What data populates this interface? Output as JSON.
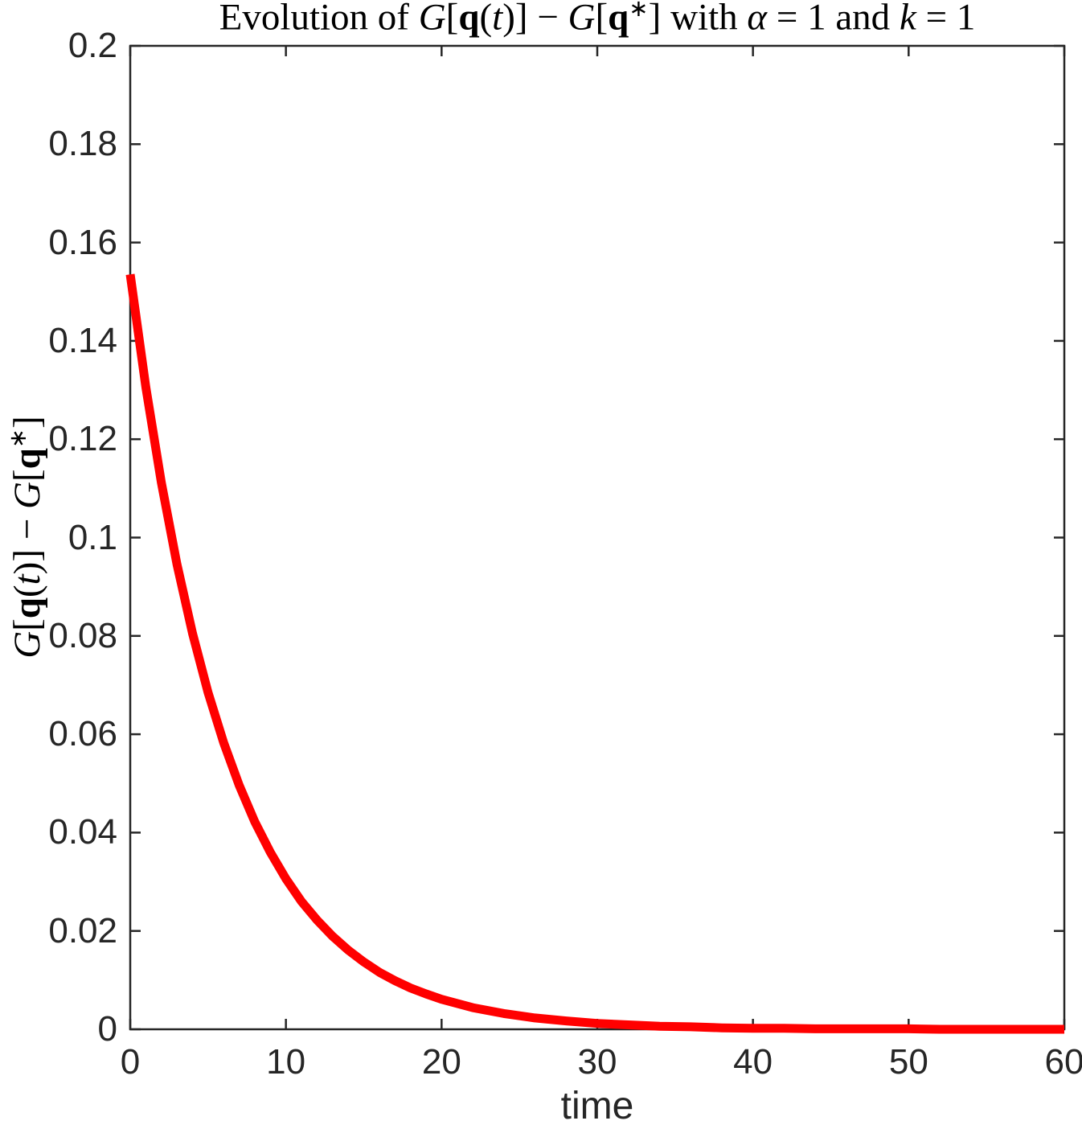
{
  "figure": {
    "background": "#FFFFFF",
    "title_plain": "Evolution of G[q(t)] − G[q∗] with α = 1 and k = 1",
    "title_parts": [
      {
        "t": "Evolution of ",
        "s": "rm"
      },
      {
        "t": "G",
        "s": "it"
      },
      {
        "t": "[",
        "s": "rm"
      },
      {
        "t": "q",
        "s": "bf"
      },
      {
        "t": "(",
        "s": "rm"
      },
      {
        "t": "t",
        "s": "it"
      },
      {
        "t": ")]",
        "s": "rm"
      },
      {
        "t": " − ",
        "s": "rm"
      },
      {
        "t": "G",
        "s": "it"
      },
      {
        "t": "[",
        "s": "rm"
      },
      {
        "t": "q",
        "s": "bf"
      },
      {
        "t": "∗",
        "s": "sup"
      },
      {
        "t": "] with ",
        "s": "rm"
      },
      {
        "t": "α",
        "s": "it"
      },
      {
        "t": " = 1 and ",
        "s": "rm"
      },
      {
        "t": "k",
        "s": "it"
      },
      {
        "t": " = 1",
        "s": "rm"
      }
    ],
    "ylabel_parts": [
      {
        "t": "G",
        "s": "it"
      },
      {
        "t": "[",
        "s": "rm"
      },
      {
        "t": "q",
        "s": "bf"
      },
      {
        "t": "(",
        "s": "rm"
      },
      {
        "t": "t",
        "s": "it"
      },
      {
        "t": ")]",
        "s": "rm"
      },
      {
        "t": " − ",
        "s": "rm"
      },
      {
        "t": "G",
        "s": "it"
      },
      {
        "t": "[",
        "s": "rm"
      },
      {
        "t": "q",
        "s": "bf"
      },
      {
        "t": "∗",
        "s": "sup"
      },
      {
        "t": "]",
        "s": "rm"
      }
    ]
  },
  "chart_data": {
    "type": "line",
    "title": "Evolution of G[q(t)] − G[q∗] with α = 1 and k = 1",
    "xlabel": "time",
    "ylabel": "G[q(t)] − G[q∗]",
    "xlim": [
      0,
      60
    ],
    "ylim": [
      0,
      0.2
    ],
    "x_ticks": [
      0,
      10,
      20,
      30,
      40,
      50,
      60
    ],
    "x_tick_labels": [
      "0",
      "10",
      "20",
      "30",
      "40",
      "50",
      "60"
    ],
    "y_ticks": [
      0,
      0.02,
      0.04,
      0.06,
      0.08,
      0.1,
      0.12,
      0.14,
      0.16,
      0.18,
      0.2
    ],
    "y_tick_labels": [
      "0",
      "0.02",
      "0.04",
      "0.06",
      "0.08",
      "0.1",
      "0.12",
      "0.14",
      "0.16",
      "0.18",
      "0.2"
    ],
    "grid": false,
    "legend_position": "none",
    "box": true,
    "tick_direction": "in",
    "axis_color": "#262626",
    "series": [
      {
        "name": "G[q(t)] − G[q∗]",
        "color": "#FF0000",
        "line_width": 11,
        "x": [
          0,
          1,
          2,
          3,
          4,
          5,
          6,
          7,
          8,
          9,
          10,
          11,
          12,
          13,
          14,
          15,
          16,
          17,
          18,
          19,
          20,
          22,
          24,
          26,
          28,
          30,
          32,
          34,
          36,
          38,
          40,
          42,
          44,
          46,
          48,
          50,
          52,
          54,
          56,
          58,
          60
        ],
        "y": [
          0.1535,
          0.1306,
          0.1112,
          0.0946,
          0.0805,
          0.0685,
          0.0583,
          0.0496,
          0.0422,
          0.036,
          0.0306,
          0.026,
          0.0222,
          0.0189,
          0.0161,
          0.0137,
          0.0116,
          0.0099,
          0.0084,
          0.0072,
          0.0061,
          0.0044,
          0.0032,
          0.0023,
          0.0017,
          0.0012,
          0.0009,
          0.0006,
          0.0005,
          0.0003,
          0.0002,
          0.0002,
          0.0001,
          0.0001,
          0.0001,
          0.0001,
          0.0,
          0.0,
          0.0,
          0.0,
          0.0
        ]
      }
    ]
  }
}
